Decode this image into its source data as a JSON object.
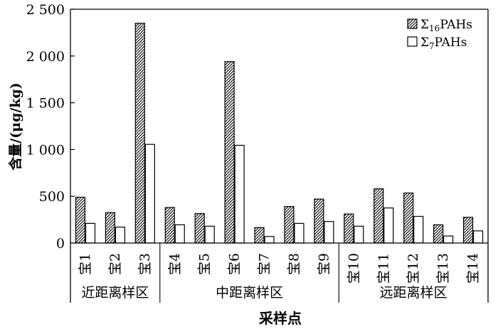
{
  "chart_data": {
    "type": "bar",
    "categories": [
      "宝1",
      "宝2",
      "宝3",
      "宝4",
      "宝5",
      "宝6",
      "宝7",
      "宝8",
      "宝9",
      "宝10",
      "宝11",
      "宝12",
      "宝13",
      "宝14"
    ],
    "series": [
      {
        "name": "Σ16PAHs",
        "name_main": "Σ",
        "name_sub": "16",
        "name_rest": "PAHs",
        "pattern": "hatched",
        "values": [
          490,
          325,
          2350,
          380,
          315,
          1940,
          165,
          390,
          470,
          310,
          580,
          535,
          195,
          275
        ]
      },
      {
        "name": "Σ7PAHs",
        "name_main": "Σ",
        "name_sub": "7",
        "name_rest": "PAHs",
        "pattern": "white",
        "values": [
          210,
          170,
          1055,
          195,
          180,
          1045,
          70,
          210,
          230,
          180,
          375,
          285,
          75,
          130
        ]
      }
    ],
    "groups": [
      {
        "label": "近距离样区",
        "start": 0,
        "end": 2
      },
      {
        "label": "中距离样区",
        "start": 3,
        "end": 8
      },
      {
        "label": "远距离样区",
        "start": 9,
        "end": 13
      }
    ],
    "yticks": [
      "0",
      "500",
      "1 000",
      "1 500",
      "2 000",
      "2 500"
    ],
    "ylim": [
      0,
      2500
    ],
    "ylabel": "含量/(μg/kg)",
    "xlabel": "采样点",
    "legend_position": "top-right",
    "grid": false
  }
}
